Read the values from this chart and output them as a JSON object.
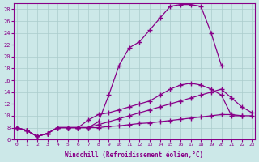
{
  "xlabel": "Windchill (Refroidissement éolien,°C)",
  "background_color": "#cce8e8",
  "grid_color": "#aacccc",
  "line_color": "#880088",
  "x": [
    0,
    1,
    2,
    3,
    4,
    5,
    6,
    7,
    8,
    9,
    10,
    11,
    12,
    13,
    14,
    15,
    16,
    17,
    18,
    19,
    20,
    21,
    22,
    23
  ],
  "curve_top": [
    8.0,
    7.5,
    6.5,
    7.0,
    8.0,
    8.0,
    8.0,
    8.0,
    9.0,
    13.5,
    18.5,
    21.5,
    22.5,
    24.5,
    26.5,
    28.5,
    28.8,
    28.8,
    28.5,
    24.0,
    18.5,
    null,
    null,
    null
  ],
  "curve_mid_high": [
    8.0,
    7.5,
    6.5,
    7.0,
    8.0,
    8.0,
    8.0,
    9.3,
    10.2,
    10.5,
    11.0,
    11.5,
    12.0,
    12.5,
    13.5,
    14.5,
    15.2,
    15.5,
    15.2,
    14.5,
    13.5,
    10.0,
    10.0,
    null
  ],
  "curve_mid_low": [
    8.0,
    7.5,
    6.5,
    7.0,
    8.0,
    8.0,
    8.0,
    8.0,
    8.5,
    9.0,
    9.5,
    10.0,
    10.5,
    11.0,
    11.5,
    12.0,
    12.5,
    13.0,
    13.5,
    14.0,
    14.5,
    13.0,
    11.5,
    10.5
  ],
  "curve_bot": [
    8.0,
    7.5,
    6.5,
    7.0,
    8.0,
    8.0,
    8.0,
    8.0,
    8.0,
    8.2,
    8.3,
    8.5,
    8.7,
    8.8,
    9.0,
    9.2,
    9.4,
    9.6,
    9.8,
    10.0,
    10.2,
    10.2,
    10.0,
    10.0
  ],
  "ylim": [
    6,
    29
  ],
  "xlim": [
    -0.3,
    23.3
  ],
  "yticks": [
    6,
    8,
    10,
    12,
    14,
    16,
    18,
    20,
    22,
    24,
    26,
    28
  ],
  "xticks": [
    0,
    1,
    2,
    3,
    4,
    5,
    6,
    7,
    8,
    9,
    10,
    11,
    12,
    13,
    14,
    15,
    16,
    17,
    18,
    19,
    20,
    21,
    22,
    23
  ]
}
